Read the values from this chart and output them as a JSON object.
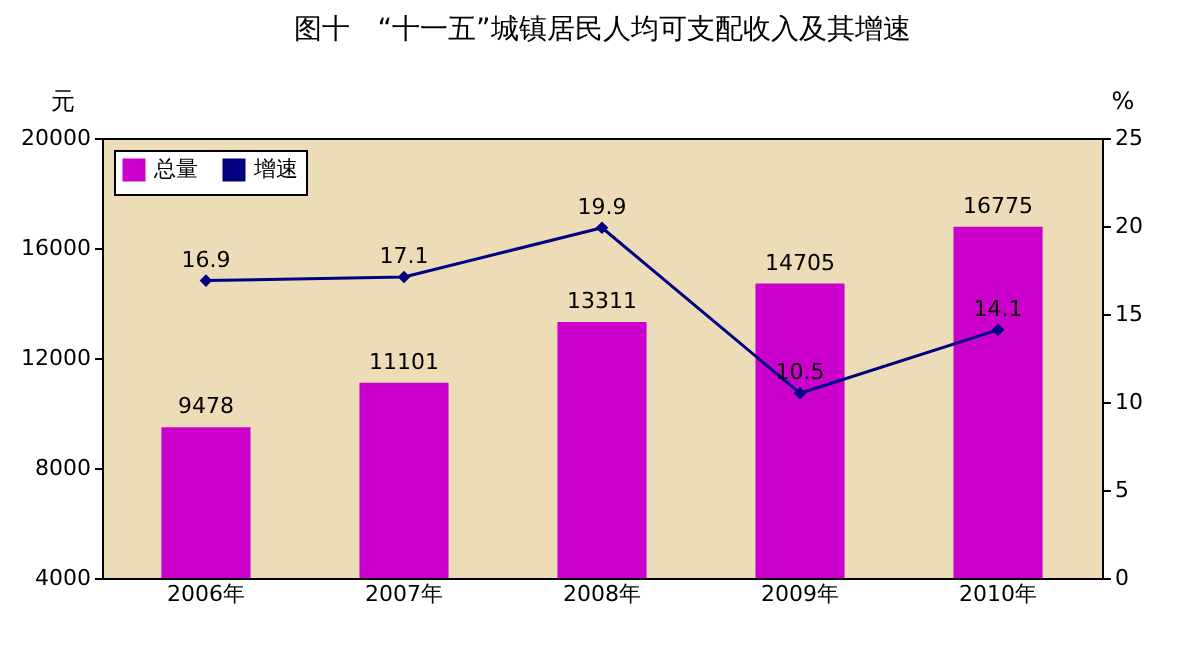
{
  "chart_data": {
    "type": "bar",
    "title": "图十　“十一五”城镇居民人均可支配收入及其增速",
    "ylabel": "元",
    "y2label": "%",
    "categories": [
      "2006年",
      "2007年",
      "2008年",
      "2009年",
      "2010年"
    ],
    "series": [
      {
        "name": "总量",
        "color": "#cc00cc",
        "values": [
          9478,
          11101,
          13311,
          14705,
          16775
        ]
      },
      {
        "name": "增速",
        "type": "line",
        "axis": "y2",
        "color": "#000080",
        "marker": "diamond",
        "values": [
          16.9,
          17.1,
          19.9,
          10.5,
          14.1
        ]
      }
    ],
    "ylim": [
      4000,
      20000
    ],
    "yticks": [
      4000,
      8000,
      12000,
      16000,
      20000
    ],
    "y2lim": [
      0,
      25
    ],
    "y2ticks": [
      0,
      5,
      10,
      15,
      20,
      25
    ],
    "data_labels": true,
    "legend": "top left",
    "grid": false
  }
}
